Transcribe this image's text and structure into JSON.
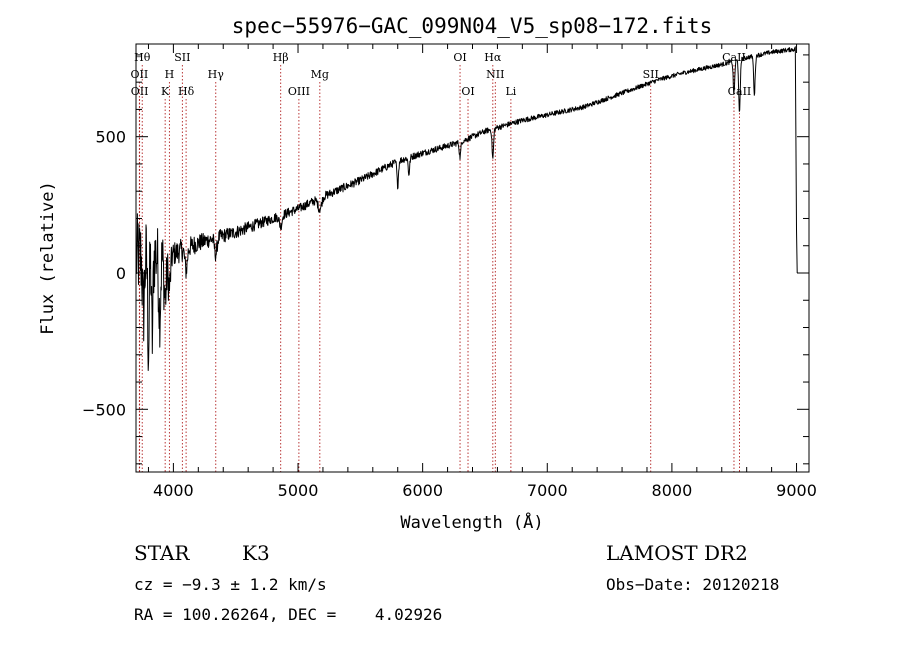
{
  "chart_data": {
    "type": "line",
    "title": "spec−55976−GAC_099N04_V5_sp08−172.fits",
    "xlabel": "Wavelength (Å)",
    "ylabel": "Flux (relative)",
    "xlim": [
      3700,
      9100
    ],
    "ylim": [
      -730,
      840
    ],
    "xticks": [
      4000,
      5000,
      6000,
      7000,
      8000,
      9000
    ],
    "xtick_labels": [
      "4000",
      "5000",
      "6000",
      "7000",
      "8000",
      "9000"
    ],
    "yticks": [
      -500,
      0,
      500
    ],
    "ytick_labels": [
      "−500",
      "0",
      "500"
    ],
    "spectral_lines": [
      {
        "wave": 3750,
        "label": "Hθ",
        "row": "upper"
      },
      {
        "wave": 3727,
        "label": "OII",
        "row": "middle"
      },
      {
        "wave": 3729,
        "label": "OII",
        "row": "lower"
      },
      {
        "wave": 3968,
        "label": "H",
        "row": "middle"
      },
      {
        "wave": 3934,
        "label": "K",
        "row": "lower"
      },
      {
        "wave": 4072,
        "label": "SII",
        "row": "upper"
      },
      {
        "wave": 4102,
        "label": "Hδ",
        "row": "lower"
      },
      {
        "wave": 4340,
        "label": "Hγ",
        "row": "middle"
      },
      {
        "wave": 4861,
        "label": "Hβ",
        "row": "upper"
      },
      {
        "wave": 5007,
        "label": "OIII",
        "row": "lower"
      },
      {
        "wave": 5175,
        "label": "Mg",
        "row": "middle"
      },
      {
        "wave": 6300,
        "label": "OI",
        "row": "upper"
      },
      {
        "wave": 6364,
        "label": "OI",
        "row": "lower"
      },
      {
        "wave": 6563,
        "label": "Hα",
        "row": "upper"
      },
      {
        "wave": 6583,
        "label": "NII",
        "row": "middle"
      },
      {
        "wave": 6708,
        "label": "Li",
        "row": "lower"
      },
      {
        "wave": 7830,
        "label": "SII",
        "row": "middle"
      },
      {
        "wave": 8498,
        "label": "CaII",
        "row": "upper"
      },
      {
        "wave": 8542,
        "label": "CaII",
        "row": "lower"
      }
    ],
    "series": [
      {
        "name": "flux",
        "continuum": [
          [
            3700,
            60
          ],
          [
            4000,
            70
          ],
          [
            4200,
            110
          ],
          [
            4500,
            150
          ],
          [
            4800,
            200
          ],
          [
            5000,
            235
          ],
          [
            5200,
            280
          ],
          [
            5500,
            340
          ],
          [
            5800,
            410
          ],
          [
            6000,
            440
          ],
          [
            6300,
            480
          ],
          [
            6500,
            520
          ],
          [
            6800,
            560
          ],
          [
            7000,
            580
          ],
          [
            7300,
            610
          ],
          [
            7600,
            660
          ],
          [
            7900,
            710
          ],
          [
            8100,
            735
          ],
          [
            8400,
            765
          ],
          [
            8600,
            790
          ],
          [
            8800,
            810
          ],
          [
            8960,
            820
          ]
        ],
        "features": [
          {
            "wave": 3760,
            "depth": -200,
            "width": 8
          },
          {
            "wave": 3800,
            "depth": -340,
            "width": 6
          },
          {
            "wave": 3830,
            "depth": -310,
            "width": 6
          },
          {
            "wave": 3890,
            "depth": -210,
            "width": 8
          },
          {
            "wave": 3934,
            "depth": -160,
            "width": 10
          },
          {
            "wave": 3968,
            "depth": -120,
            "width": 10
          },
          {
            "wave": 4102,
            "depth": -80,
            "width": 10
          },
          {
            "wave": 4340,
            "depth": -60,
            "width": 10
          },
          {
            "wave": 4861,
            "depth": -40,
            "width": 10
          },
          {
            "wave": 5175,
            "depth": -40,
            "width": 14
          },
          {
            "wave": 5800,
            "depth": -90,
            "width": 6
          },
          {
            "wave": 5890,
            "depth": -60,
            "width": 6
          },
          {
            "wave": 6300,
            "depth": -55,
            "width": 6
          },
          {
            "wave": 6563,
            "depth": -110,
            "width": 6
          },
          {
            "wave": 8498,
            "depth": -120,
            "width": 6
          },
          {
            "wave": 8542,
            "depth": -200,
            "width": 6
          },
          {
            "wave": 8662,
            "depth": -140,
            "width": 6
          }
        ],
        "end": [
          [
            8990,
            830
          ],
          [
            9000,
            160
          ],
          [
            9005,
            0
          ]
        ],
        "noise": [
          [
            3700,
            160
          ],
          [
            3900,
            130
          ],
          [
            4000,
            45
          ],
          [
            4300,
            28
          ],
          [
            4800,
            18
          ],
          [
            6000,
            12
          ],
          [
            7000,
            9
          ],
          [
            8000,
            8
          ],
          [
            9000,
            8
          ]
        ]
      }
    ]
  },
  "info": {
    "class": "STAR",
    "subclass": "K3",
    "survey": "LAMOST DR2",
    "cz": "cz = −9.3 ± 1.2 km/s",
    "obs_date": "Obs−Date: 20120218",
    "radec": "RA = 100.26264, DEC =    4.02926"
  }
}
